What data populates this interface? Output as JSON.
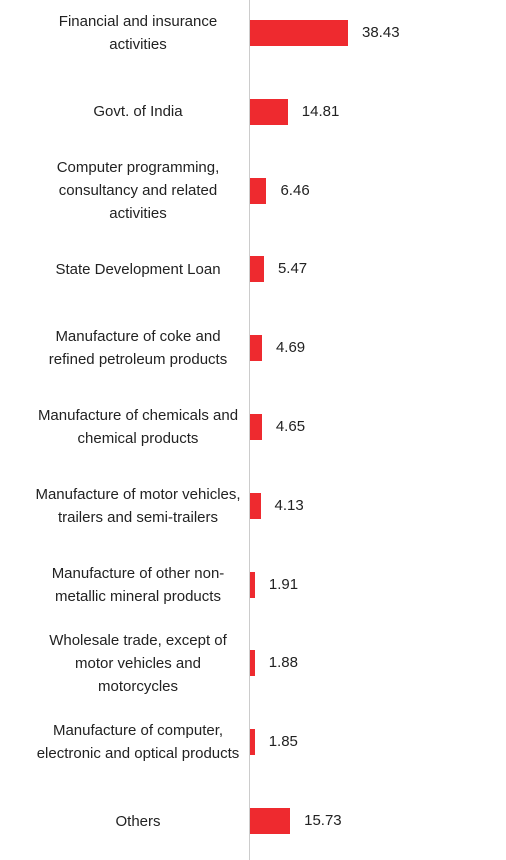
{
  "chart_data": {
    "type": "bar",
    "orientation": "horizontal",
    "categories": [
      "Financial and insurance activities",
      "Govt. of India",
      "Computer programming, consultancy and related activities",
      "State Development Loan",
      "Manufacture of coke and refined petroleum products",
      "Manufacture of chemicals and chemical products",
      "Manufacture of motor vehicles, trailers and semi-trailers",
      "Manufacture of other non-metallic mineral products",
      "Wholesale trade, except of motor vehicles and motorcycles",
      "Manufacture of computer, electronic and optical products",
      "Others"
    ],
    "values": [
      38.43,
      14.81,
      6.46,
      5.47,
      4.69,
      4.65,
      4.13,
      1.91,
      1.88,
      1.85,
      15.73
    ],
    "value_labels": [
      "38.43",
      "14.81",
      "6.46",
      "5.47",
      "4.69",
      "4.65",
      "4.13",
      "1.91",
      "1.88",
      "1.85",
      "15.73"
    ],
    "xlim": [
      0,
      38.43
    ],
    "bar_color": "#ee2a2f",
    "axis_color": "#cccccc",
    "grid": false,
    "title": "",
    "xlabel": "",
    "ylabel": ""
  }
}
